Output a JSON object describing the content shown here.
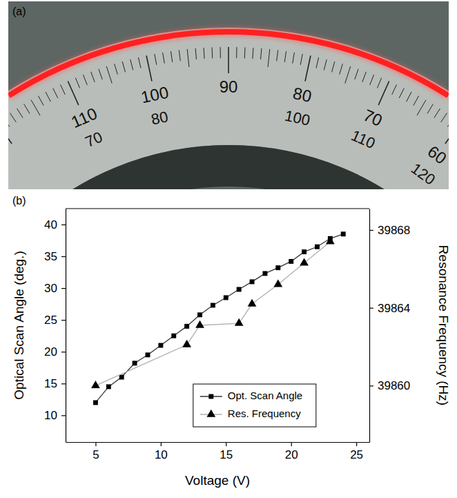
{
  "panel_a": {
    "label": "(a)",
    "outer_scale": [
      110,
      100,
      90,
      80,
      70,
      60
    ],
    "inner_scale": [
      70,
      80,
      100,
      110,
      120
    ]
  },
  "chart_data": {
    "type": "line",
    "panel_label": "(b)",
    "x_label": "Voltage (V)",
    "y_label": "Optical Scan Angle (deg.)",
    "y2_label": "Resonance Frequency (Hz)",
    "xlim": [
      2.7,
      26
    ],
    "xticks": [
      5,
      10,
      15,
      20,
      25
    ],
    "ylim": [
      5.8,
      42.5
    ],
    "yticks": [
      10,
      15,
      20,
      25,
      30,
      35,
      40
    ],
    "y2lim": [
      39857.1,
      39869.1
    ],
    "y2ticks": [
      39860,
      39864,
      39868
    ],
    "legend": "lower right",
    "series": [
      {
        "name": "Opt. Scan Angle",
        "color": "#333333",
        "marker": "square",
        "line_style": "solid",
        "x": [
          5,
          6,
          7,
          8,
          9,
          10,
          11,
          12,
          13,
          14,
          15,
          16,
          17,
          18,
          19,
          20,
          21,
          22,
          23,
          24
        ],
        "values": [
          12,
          14.5,
          16,
          18.2,
          19.5,
          21,
          22.5,
          24,
          25.8,
          27.3,
          28.5,
          29.8,
          31,
          32.3,
          33.2,
          34.2,
          35.7,
          36.5,
          37.8,
          38.5
        ]
      },
      {
        "name": "Res. Frequency",
        "color": "#b0b0b0",
        "marker": "triangle",
        "line_style": "solid",
        "axis": "y2",
        "x": [
          5,
          12,
          13,
          16,
          17,
          19,
          21,
          23
        ],
        "values": [
          39860,
          39862.1,
          39863.1,
          39863.2,
          39864.2,
          39865.2,
          39866.3,
          39867.4
        ]
      }
    ]
  }
}
